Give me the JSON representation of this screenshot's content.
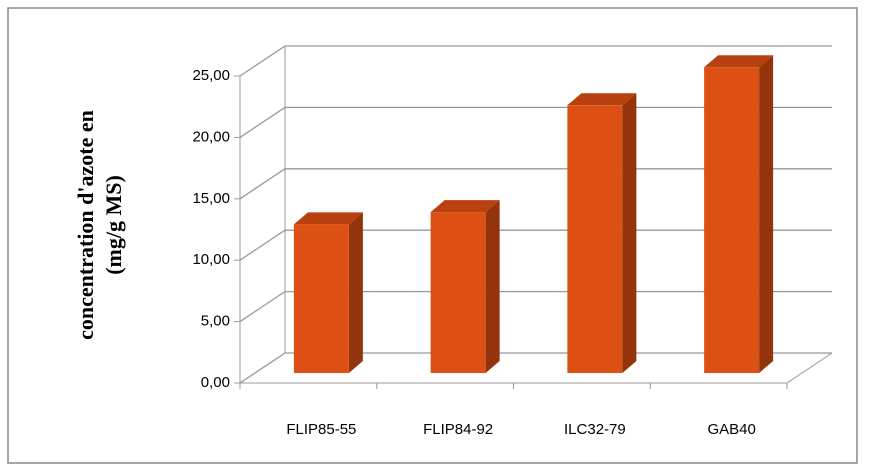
{
  "chart_data": {
    "type": "bar3d",
    "ylabel": [
      "concentration d'azote en",
      "(mg/g MS)"
    ],
    "categories": [
      "FLIP85-55",
      "FLIP84-92",
      "ILC32-79",
      "GAB40"
    ],
    "values": [
      12.1,
      13.1,
      21.8,
      24.9
    ],
    "color": "#dd5014",
    "ylim": [
      0,
      25
    ],
    "yticks": [
      {
        "value": 0,
        "label": "0,00"
      },
      {
        "value": 5,
        "label": "5,00"
      },
      {
        "value": 10,
        "label": "10,00"
      },
      {
        "value": 15,
        "label": "15,00"
      },
      {
        "value": 20,
        "label": "20,00"
      },
      {
        "value": 25,
        "label": "25,00"
      }
    ],
    "grid": true
  }
}
